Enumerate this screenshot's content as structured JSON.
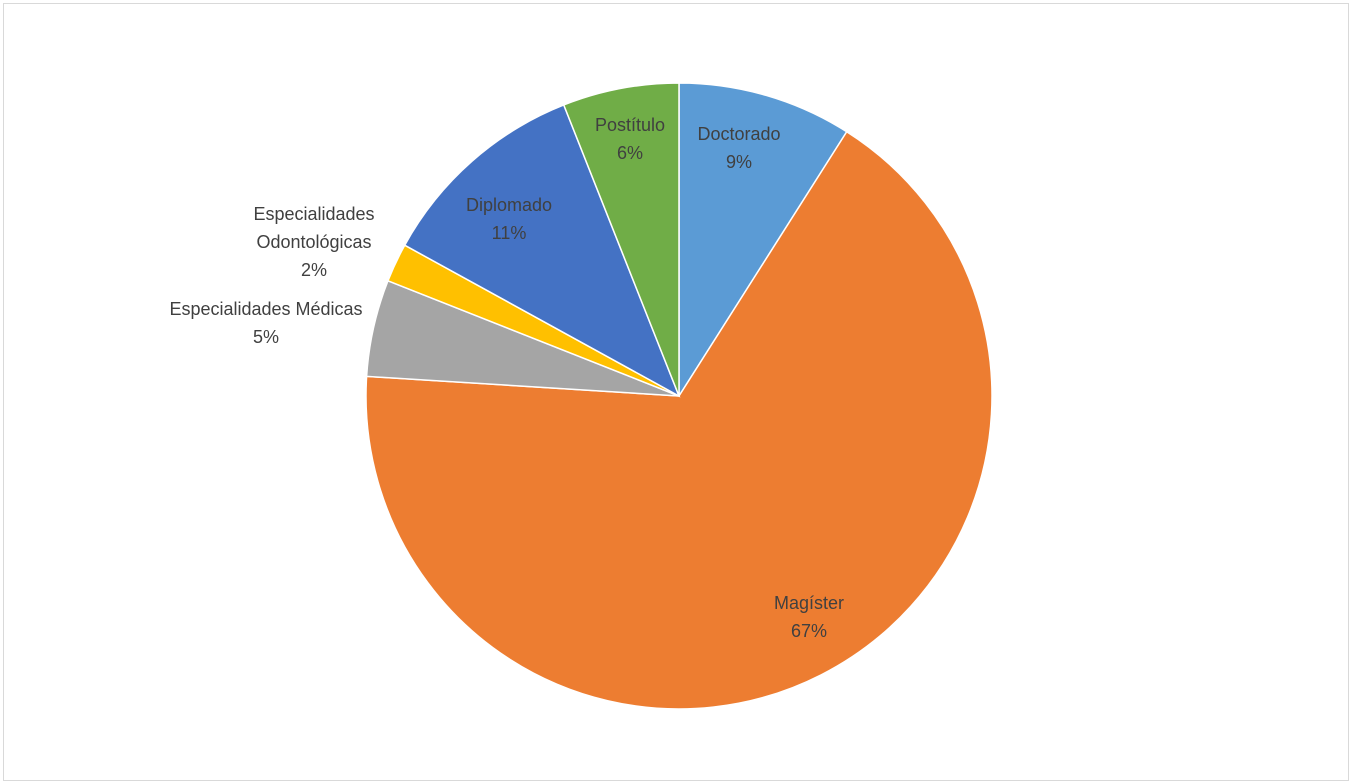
{
  "chart_data": {
    "type": "pie",
    "title": "",
    "start_angle_deg": 0,
    "direction": "clockwise",
    "slices": [
      {
        "name": "Doctorado",
        "value": 9,
        "label": "9%",
        "color": "#5B9BD5"
      },
      {
        "name": "Magíster",
        "value": 67,
        "label": "67%",
        "color": "#ED7D31"
      },
      {
        "name": "Especialidades Médicas",
        "value": 5,
        "label": "5%",
        "color": "#A5A5A5"
      },
      {
        "name": "Especialidades Odontológicas",
        "value": 2,
        "label": "2%",
        "color": "#FFC000"
      },
      {
        "name": "Diplomado",
        "value": 11,
        "label": "11%",
        "color": "#4472C4"
      },
      {
        "name": "Postítulo",
        "value": 6,
        "label": "6%",
        "color": "#70AD47"
      }
    ]
  }
}
